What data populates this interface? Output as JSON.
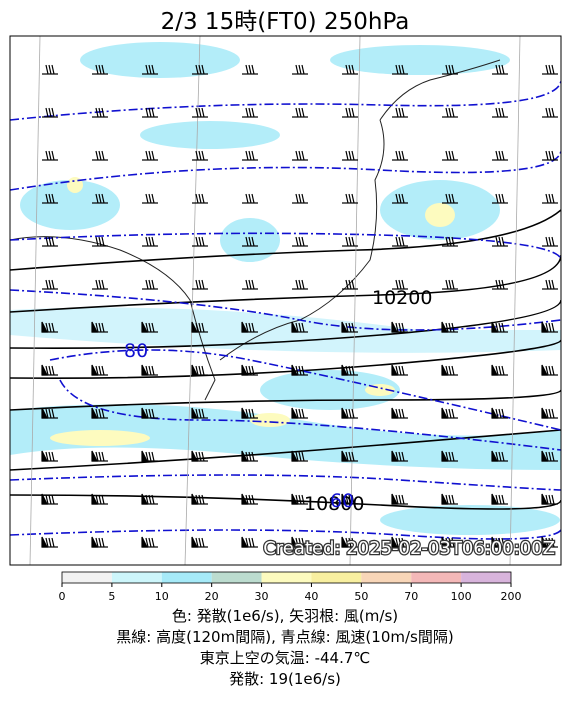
{
  "header": {
    "title": "2/3  15時(FT0)     250hPa"
  },
  "map": {
    "created": "Created: 2025-02-03T06:00:00Z",
    "contour_labels": [
      "10200",
      "80",
      "10800",
      "60"
    ]
  },
  "colorbar": {
    "ticks": [
      "0",
      "5",
      "10",
      "20",
      "30",
      "40",
      "50",
      "70",
      "100",
      "200"
    ],
    "colors": [
      "#f2f2f2",
      "#cdf6fb",
      "#a6eaf8",
      "#bcdccf",
      "#fdfbbf",
      "#f8efa0",
      "#f8d6b8",
      "#f4b8b8",
      "#d8b4dc"
    ]
  },
  "caption": [
    "色: 発散(1e6/s),  矢羽根: 風(m/s)",
    "黒線: 高度(120m間隔), 青点線: 風速(10m/s間隔)",
    "東京上空の気温: -44.7℃",
    "発散: 19(1e6/s)"
  ]
}
